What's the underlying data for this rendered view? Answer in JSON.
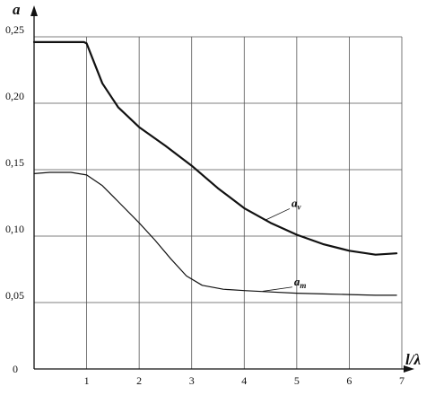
{
  "chart_data": {
    "type": "line",
    "title": "",
    "xlabel": "l/λ",
    "ylabel": "a",
    "xlim": [
      0,
      7
    ],
    "ylim": [
      0,
      0.25
    ],
    "x_ticks": [
      "1",
      "2",
      "3",
      "4",
      "5",
      "6",
      "7"
    ],
    "y_ticks": [
      "0",
      "0,05",
      "0,10",
      "0,15",
      "0,20",
      "0,25"
    ],
    "y_tick_values": [
      0,
      0.05,
      0.1,
      0.15,
      0.2,
      0.25
    ],
    "grid": true,
    "series": [
      {
        "name": "a_v",
        "label_main": "a",
        "label_sub": "v",
        "color": "#111111",
        "x": [
          0.0,
          0.5,
          0.95,
          1.0,
          1.1,
          1.3,
          1.6,
          2.0,
          2.5,
          3.0,
          3.5,
          4.0,
          4.5,
          5.0,
          5.5,
          6.0,
          6.5,
          6.9
        ],
        "y": [
          0.246,
          0.246,
          0.246,
          0.245,
          0.235,
          0.215,
          0.197,
          0.182,
          0.168,
          0.153,
          0.136,
          0.121,
          0.11,
          0.101,
          0.094,
          0.089,
          0.086,
          0.087
        ]
      },
      {
        "name": "a_m",
        "label_main": "a",
        "label_sub": "m",
        "color": "#111111",
        "x": [
          0.0,
          0.3,
          0.7,
          1.0,
          1.3,
          1.6,
          2.0,
          2.3,
          2.6,
          2.9,
          3.2,
          3.6,
          4.0,
          4.5,
          5.0,
          5.5,
          6.0,
          6.5,
          6.9
        ],
        "y": [
          0.147,
          0.148,
          0.148,
          0.146,
          0.138,
          0.126,
          0.11,
          0.097,
          0.083,
          0.07,
          0.063,
          0.06,
          0.059,
          0.058,
          0.057,
          0.0565,
          0.056,
          0.0555,
          0.0555
        ]
      }
    ]
  }
}
